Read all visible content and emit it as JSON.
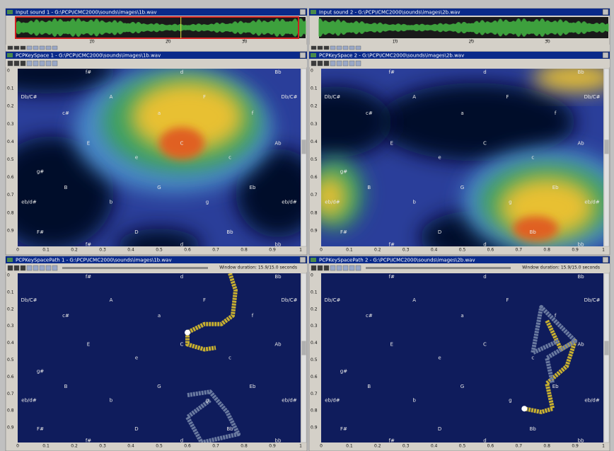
{
  "windows": {
    "wave1": {
      "title": "Input sound 1 - G:\\PCP\\ICMC2000\\sounds\\images\\1b.wav",
      "ticks": [
        10,
        20,
        30
      ]
    },
    "wave2": {
      "title": "Input sound 2 - G:\\PCP\\ICMC2000\\sounds\\images\\2b.wav",
      "ticks": [
        10,
        20,
        30
      ]
    },
    "keyscape1": {
      "title": "PCPKeySpace 1 - G:\\PCP\\ICMC2000\\sounds\\images\\1b.wav"
    },
    "keyscape2": {
      "title": "PCPKeySpace 2 - G:\\PCP\\ICMC2000\\sounds\\images\\2b.wav"
    },
    "path1": {
      "title": "PCPKeySpacePath 1 - G:\\PCP\\ICMC2000\\sounds\\images\\1b.wav",
      "status": "Window duration: 15.9/15.0 seconds"
    },
    "path2": {
      "title": "PCPKeySpacePath 2 - G:\\PCP\\ICMC2000\\sounds\\images\\2b.wav",
      "status": "Window duration: 15.9/15.0 seconds"
    }
  },
  "keys": [
    "f#",
    "d",
    "Bb",
    "Db/C#",
    "A",
    "F",
    "Db/C#",
    "c#",
    "a",
    "f",
    "E",
    "C",
    "Ab",
    "e",
    "c",
    "g#",
    "B",
    "G",
    "Eb",
    "eb/d#",
    "b",
    "g",
    "eb/d#",
    "F#",
    "D",
    "Bb",
    "f#",
    "d",
    "bb"
  ],
  "y_ticks": [
    0,
    0.1,
    0.2,
    0.3,
    0.4,
    0.5,
    0.6,
    0.7,
    0.8,
    0.9
  ],
  "x_ticks": [
    0,
    0.1,
    0.2,
    0.3,
    0.4,
    0.5,
    0.6,
    0.7,
    0.8,
    0.9,
    1
  ]
}
